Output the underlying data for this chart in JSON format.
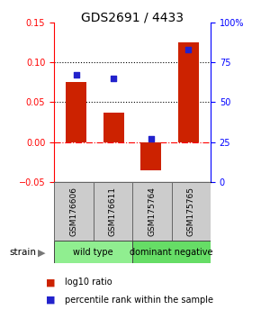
{
  "title": "GDS2691 / 4433",
  "samples": [
    "GSM176606",
    "GSM176611",
    "GSM175764",
    "GSM175765"
  ],
  "log10_ratio": [
    0.075,
    0.037,
    -0.035,
    0.125
  ],
  "percentile_rank": [
    67,
    65,
    27,
    83
  ],
  "groups": [
    {
      "label": "wild type",
      "indices": [
        0,
        1
      ],
      "color": "#90EE90"
    },
    {
      "label": "dominant negative",
      "indices": [
        2,
        3
      ],
      "color": "#66DD66"
    }
  ],
  "ylim_left": [
    -0.05,
    0.15
  ],
  "ylim_right": [
    0,
    100
  ],
  "yticks_left": [
    -0.05,
    0.0,
    0.05,
    0.1,
    0.15
  ],
  "yticks_right": [
    0,
    25,
    50,
    75,
    100
  ],
  "bar_color": "#CC2200",
  "dot_color": "#2222CC",
  "label_log10": "log10 ratio",
  "label_percentile": "percentile rank within the sample",
  "strain_label": "strain",
  "sample_box_color": "#cccccc",
  "sample_box_edge": "#888888"
}
